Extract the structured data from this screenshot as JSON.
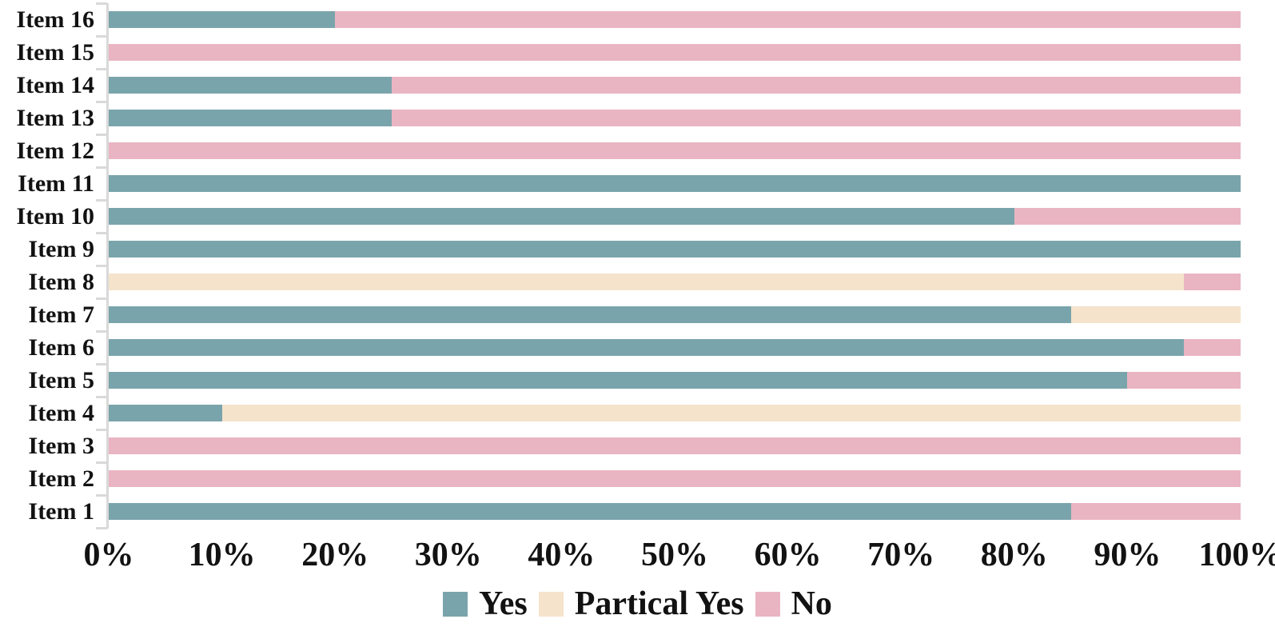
{
  "chart_data": {
    "type": "bar",
    "orientation": "horizontal",
    "stacked": true,
    "unit": "percent",
    "xlim": [
      0,
      100
    ],
    "grid": false,
    "legend_position": "bottom-center",
    "axis_color": "#d9d9d9",
    "categories": [
      "Item 16",
      "Item 15",
      "Item 14",
      "Item 13",
      "Item 12",
      "Item 11",
      "Item 10",
      "Item 9",
      "Item 8",
      "Item 7",
      "Item 6",
      "Item 5",
      "Item 4",
      "Item 3",
      "Item 2",
      "Item 1"
    ],
    "series": [
      {
        "name": "Yes",
        "color": "#7AA4AB",
        "values": [
          20,
          0,
          25,
          25,
          0,
          100,
          80,
          100,
          0,
          85,
          95,
          90,
          10,
          0,
          0,
          85
        ]
      },
      {
        "name": "Partical Yes",
        "color": "#F5E3CC",
        "values": [
          0,
          0,
          0,
          0,
          0,
          0,
          0,
          0,
          95,
          15,
          0,
          0,
          90,
          0,
          0,
          0
        ]
      },
      {
        "name": "No",
        "color": "#EAB5C3",
        "values": [
          80,
          100,
          75,
          75,
          100,
          0,
          20,
          0,
          5,
          0,
          5,
          10,
          0,
          100,
          100,
          15
        ]
      }
    ],
    "x_ticks": [
      "0%",
      "10%",
      "20%",
      "30%",
      "40%",
      "50%",
      "60%",
      "70%",
      "80%",
      "90%",
      "100%"
    ],
    "legend": [
      {
        "label": "Yes",
        "color": "#7AA4AB"
      },
      {
        "label": "Partical Yes",
        "color": "#F5E3CC"
      },
      {
        "label": "No",
        "color": "#EAB5C3"
      }
    ]
  }
}
